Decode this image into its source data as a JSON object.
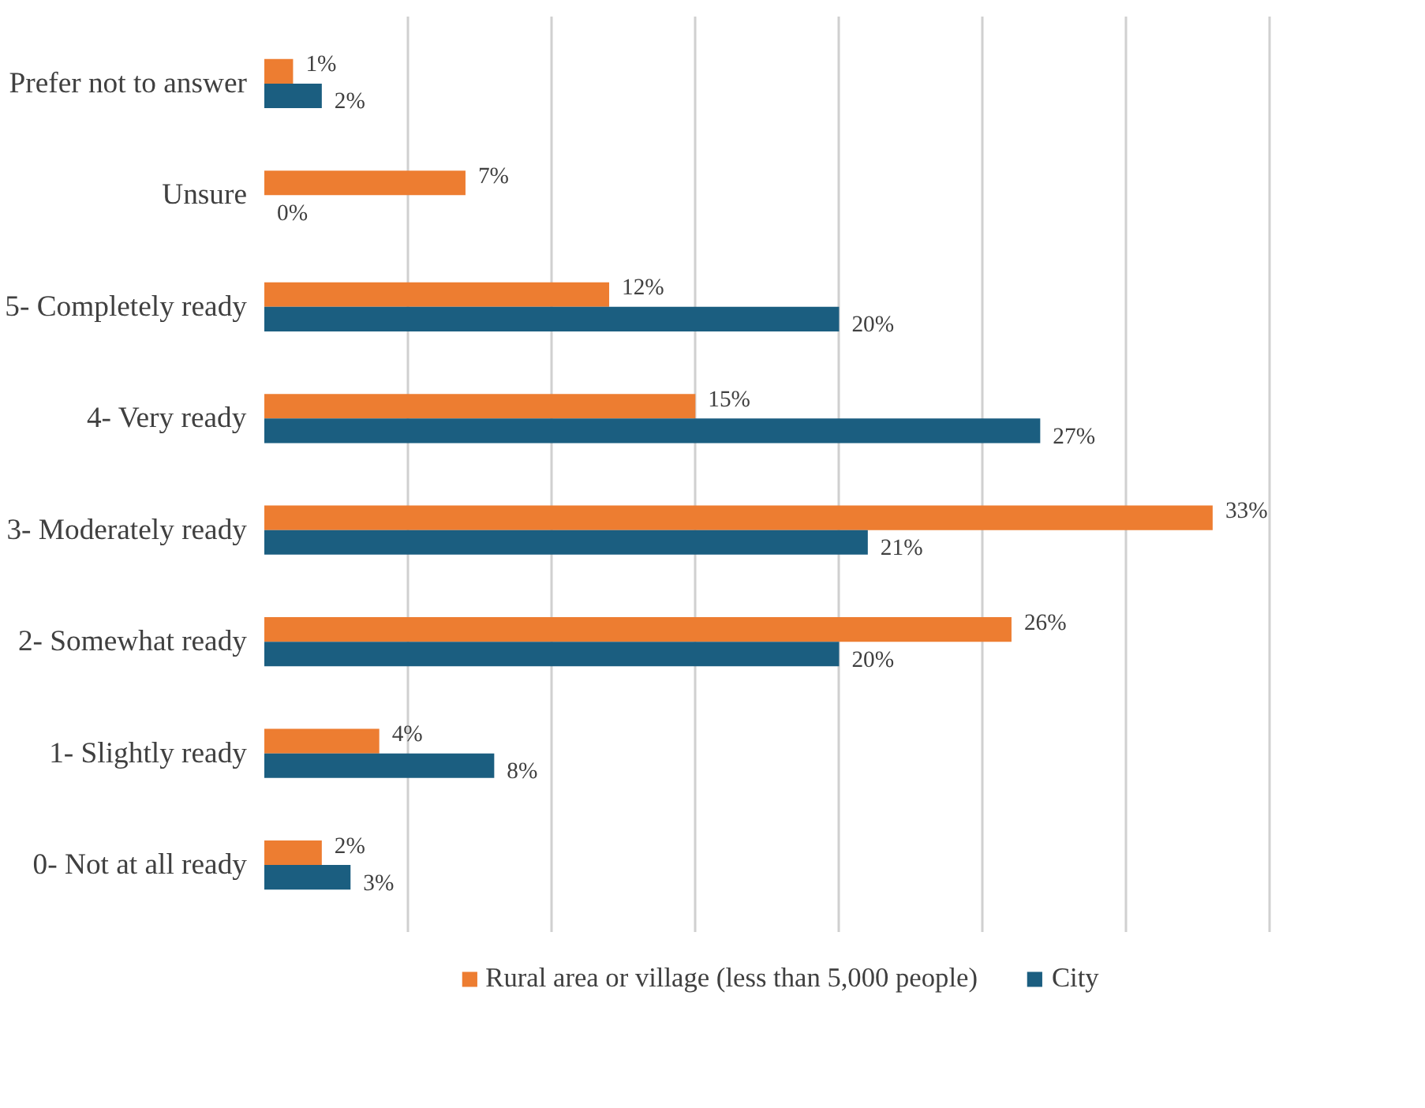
{
  "chart_data": {
    "type": "bar",
    "orientation": "horizontal",
    "categories": [
      "Prefer not to answer",
      "Unsure",
      "5- Completely ready",
      "4- Very ready",
      "3- Moderately ready",
      "2- Somewhat ready",
      "1- Slightly ready",
      "0- Not at all ready"
    ],
    "series": [
      {
        "name": "Rural area or village (less than 5,000 people)",
        "color": "#ed7d31",
        "values": [
          1,
          7,
          12,
          15,
          33,
          26,
          4,
          2
        ],
        "value_labels": [
          "1%",
          "7%",
          "12%",
          "15%",
          "33%",
          "26%",
          "4%",
          "2%"
        ]
      },
      {
        "name": "City",
        "color": "#1b5e80",
        "values": [
          2,
          0,
          20,
          27,
          21,
          20,
          8,
          3
        ],
        "value_labels": [
          "2%",
          "0%",
          "20%",
          "27%",
          "21%",
          "20%",
          "8%",
          "3%"
        ]
      }
    ],
    "tick_labels": "y",
    "grid": "x",
    "legend": "bottom"
  }
}
